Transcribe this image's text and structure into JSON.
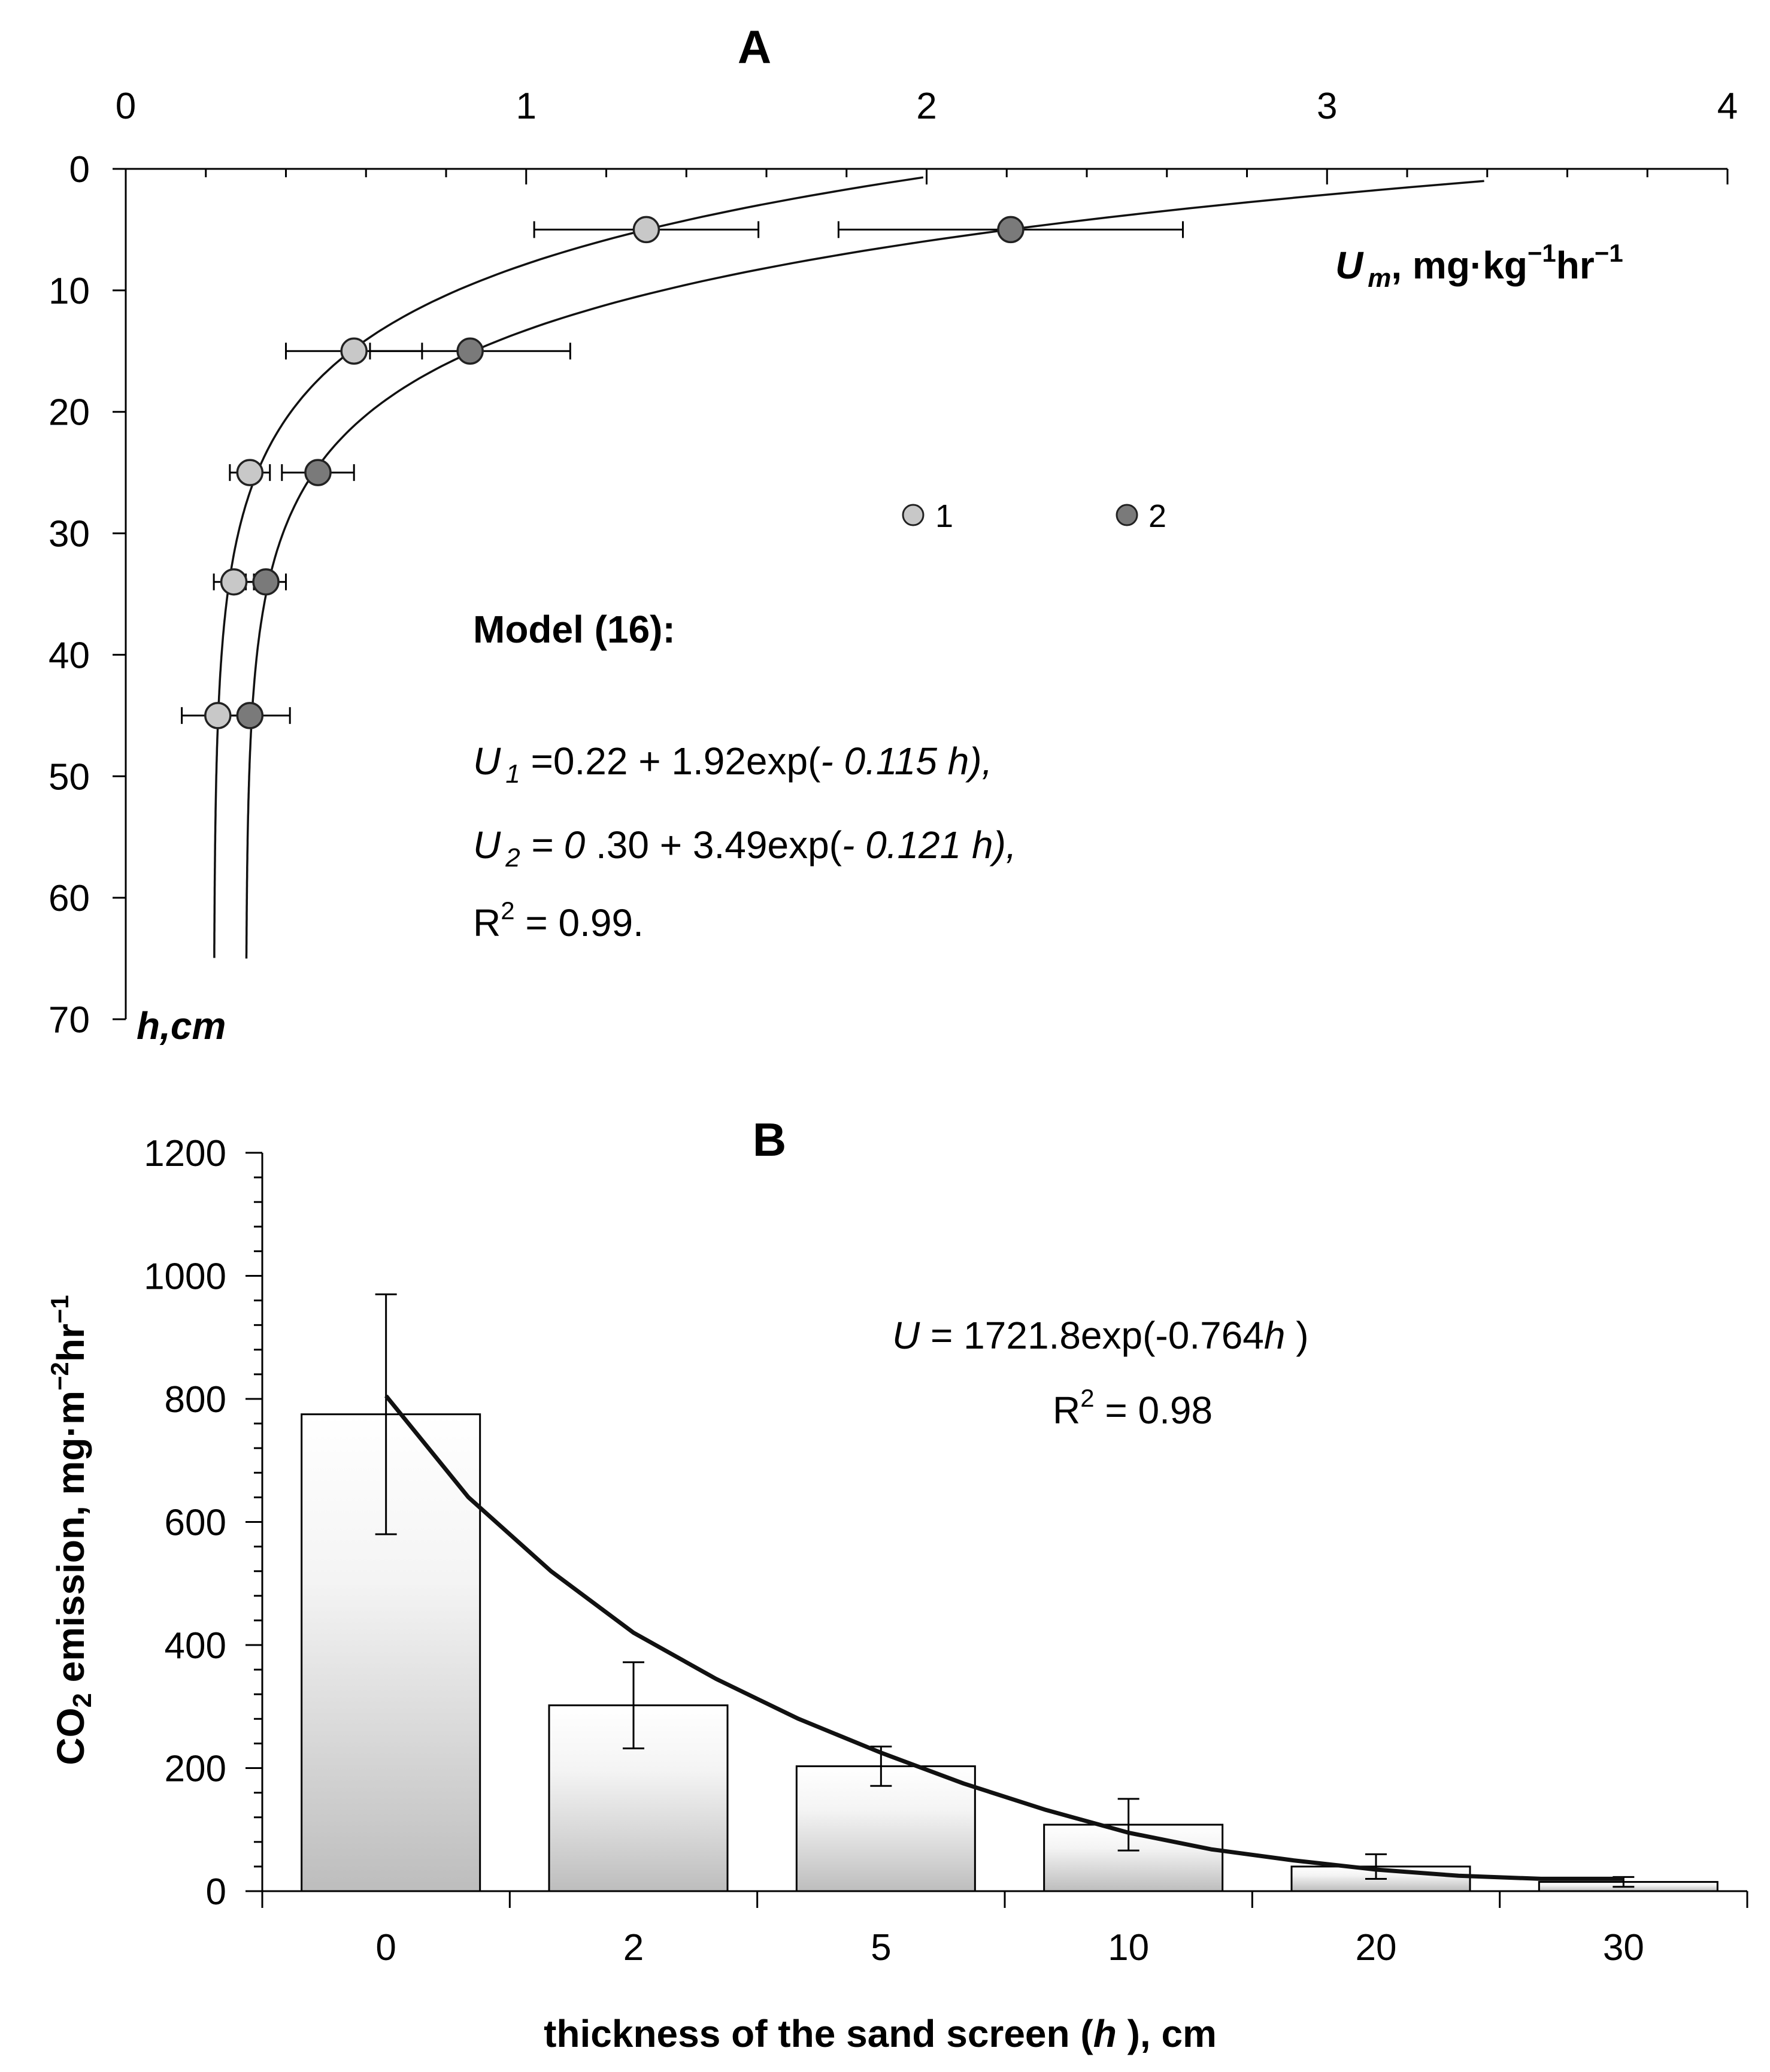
{
  "chart_data": [
    {
      "panel": "A",
      "type": "scatter",
      "title": "A",
      "xlabel": "U m , mg·kg−1hr−1",
      "xlabel_parts": {
        "var": "U",
        "sub": "m",
        "units": ", mg·kg",
        "sup1": "−1",
        "units2": "hr",
        "sup2": "−1"
      },
      "ylabel": "h,cm",
      "xlim": [
        0,
        4
      ],
      "ylim": [
        0,
        70
      ],
      "x_ticks": [
        "0",
        "1",
        "2",
        "3",
        "4"
      ],
      "y_ticks": [
        "0",
        "10",
        "20",
        "30",
        "40",
        "50",
        "60",
        "70"
      ],
      "series": [
        {
          "name": "1",
          "color": "#c8c8c8",
          "points": [
            {
              "h": 5,
              "u": 1.3,
              "err": 0.28
            },
            {
              "h": 15,
              "u": 0.57,
              "err": 0.17
            },
            {
              "h": 25,
              "u": 0.31,
              "err": 0.05
            },
            {
              "h": 34,
              "u": 0.27,
              "err": 0.05
            },
            {
              "h": 45,
              "u": 0.23,
              "err": 0.09
            }
          ],
          "model": {
            "a": 0.22,
            "b": 1.92,
            "k": 0.115,
            "h_range": [
              0.7,
              65
            ]
          }
        },
        {
          "name": "2",
          "color": "#7a7a7a",
          "points": [
            {
              "h": 5,
              "u": 2.21,
              "err": 0.43
            },
            {
              "h": 15,
              "u": 0.86,
              "err": 0.25
            },
            {
              "h": 25,
              "u": 0.48,
              "err": 0.09
            },
            {
              "h": 34,
              "u": 0.35,
              "err": 0.05
            },
            {
              "h": 45,
              "u": 0.31,
              "err": 0.1
            }
          ],
          "model": {
            "a": 0.3,
            "b": 3.49,
            "k": 0.121,
            "h_range": [
              1.0,
              65
            ]
          }
        }
      ],
      "legend": [
        "1",
        "2"
      ],
      "annotation": {
        "heading": "Model (16):",
        "line1": {
          "var": "U",
          "sub": "1",
          "eq": " =",
          "rest": "0.22 + 1.92exp(",
          "neg": "- 0.115 ",
          "h": "h),"
        },
        "line2": {
          "var": "U",
          "sub": "2",
          "eq": " = 0",
          "rest": " .30 + 3.49exp(",
          "neg": "- 0.121 ",
          "h": "h),"
        },
        "line3": {
          "R": "R",
          "sup": "2",
          "rest": " = 0.99."
        }
      }
    },
    {
      "panel": "B",
      "type": "bar",
      "title": "B",
      "xlabel": "thickness of the sand screen (h ), cm",
      "xlabel_parts": {
        "pre": "thickness of the sand screen (",
        "var": "h",
        "post": " ), cm"
      },
      "ylabel": "CO2 emission, mg·m−2hr−1",
      "ylabel_parts": {
        "pre": "CO",
        "sub": "2",
        "mid": " emission, mg·m",
        "sup1": "−2",
        "units2": "hr",
        "sup2": "−1"
      },
      "categories": [
        "0",
        "2",
        "5",
        "10",
        "20",
        "30"
      ],
      "values": [
        775,
        302,
        203,
        108,
        40,
        15
      ],
      "errors": [
        195,
        70,
        32,
        42,
        20,
        8
      ],
      "ylim": [
        0,
        1200
      ],
      "y_ticks": [
        "0",
        "200",
        "400",
        "600",
        "800",
        "1000",
        "1200"
      ],
      "fit": {
        "label": "U = 1721.8exp(-0.764h )",
        "a": 1721.8,
        "k": 0.764,
        "curve_values": [
          805,
          640,
          520,
          420,
          345,
          280,
          225,
          175,
          132,
          95,
          68,
          50,
          35,
          25,
          20,
          20
        ]
      },
      "annotation": {
        "line1": {
          "var": "U",
          "rest": " = 1721.8exp(-0.764",
          "h": "h",
          "close": " )"
        },
        "line2": {
          "R": "R",
          "sup": "2",
          "rest": " = 0.98"
        }
      }
    }
  ]
}
